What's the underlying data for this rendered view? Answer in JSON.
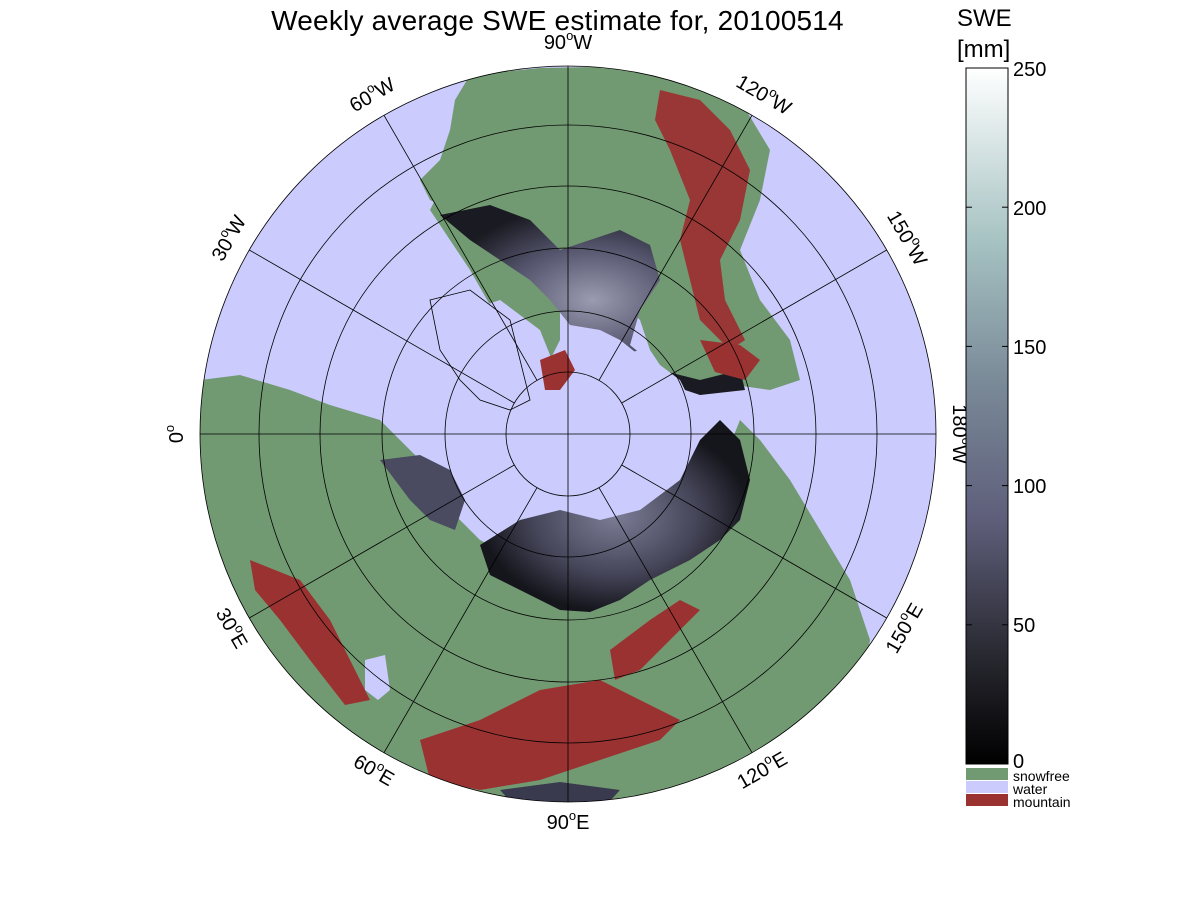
{
  "title": "Weekly average SWE estimate for, 20100514",
  "map": {
    "longitude_labels": [
      {
        "text": "90",
        "unit": "W",
        "lon": -90
      },
      {
        "text": "120",
        "unit": "W",
        "lon": -120
      },
      {
        "text": "150",
        "unit": "W",
        "lon": -150
      },
      {
        "text": "180",
        "unit": "W",
        "lon": 180
      },
      {
        "text": "150",
        "unit": "E",
        "lon": 150
      },
      {
        "text": "120",
        "unit": "E",
        "lon": 120
      },
      {
        "text": "90",
        "unit": "E",
        "lon": 90
      },
      {
        "text": "60",
        "unit": "E",
        "lon": 60
      },
      {
        "text": "30",
        "unit": "E",
        "lon": 30
      },
      {
        "text": "0",
        "unit": "",
        "lon": 0
      },
      {
        "text": "30",
        "unit": "W",
        "lon": -30
      },
      {
        "text": "60",
        "unit": "W",
        "lon": -60
      }
    ],
    "colors": {
      "water": "#cbcbfd",
      "snowfree": "#729a72",
      "mountain": "#9a3232",
      "snow_low": "#0a0a10",
      "snow_mid": "#5e5e80",
      "snow_high": "#ffffff"
    }
  },
  "colorbar": {
    "title_line1": "SWE",
    "title_line2": "[mm]",
    "ticks": [
      "250",
      "200",
      "150",
      "100",
      "50",
      "0"
    ],
    "tick_values": [
      250,
      200,
      150,
      100,
      50,
      0
    ],
    "range": [
      0,
      250
    ]
  },
  "legend": [
    {
      "label": "snowfree",
      "color": "#729a72"
    },
    {
      "label": "water",
      "color": "#cbcbfd"
    },
    {
      "label": "mountain",
      "color": "#9a3232"
    }
  ]
}
